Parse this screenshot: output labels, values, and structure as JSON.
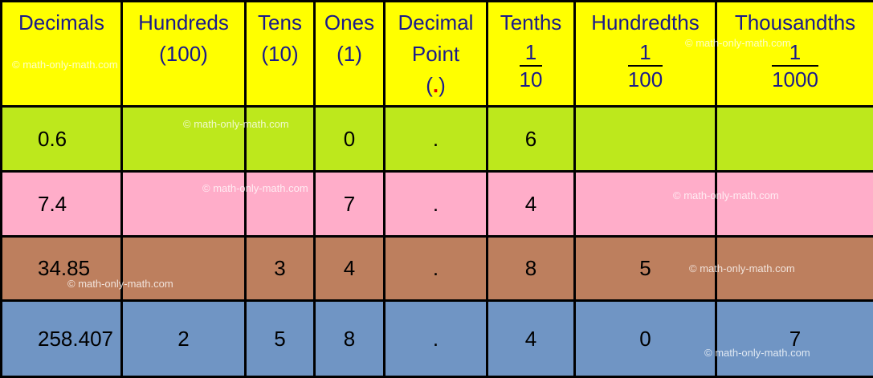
{
  "header": {
    "decimals": "Decimals",
    "hundreds": [
      "Hundreds",
      "(100)"
    ],
    "tens": [
      "Tens",
      "(10)"
    ],
    "ones": [
      "Ones",
      "(1)"
    ],
    "decimal_point": [
      "Decimal",
      "Point",
      "(",
      ".",
      ")"
    ],
    "tenths": {
      "label": "Tenths",
      "num": "1",
      "den": "10"
    },
    "hundredths": {
      "label": "Hundredths",
      "num": "1",
      "den": "100"
    },
    "thousandths": {
      "label": "Thousandths",
      "num": "1",
      "den": "1000"
    }
  },
  "rows": [
    {
      "decimal": "0.6",
      "hundreds": "",
      "tens": "",
      "ones": "0",
      "point": ".",
      "tenths": "6",
      "hundredths": "",
      "thousandths": ""
    },
    {
      "decimal": "7.4",
      "hundreds": "",
      "tens": "",
      "ones": "7",
      "point": ".",
      "tenths": "4",
      "hundredths": "",
      "thousandths": ""
    },
    {
      "decimal": "34.85",
      "hundreds": "",
      "tens": "3",
      "ones": "4",
      "point": ".",
      "tenths": "8",
      "hundredths": "5",
      "thousandths": ""
    },
    {
      "decimal": "258.407",
      "hundreds": "2",
      "tens": "5",
      "ones": "8",
      "point": ".",
      "tenths": "4",
      "hundredths": "0",
      "thousandths": "7"
    }
  ],
  "watermark": "© math-only-math.com",
  "colors": {
    "header_bg": "#ffff00",
    "header_text": "#1a1a8c",
    "row1_bg": "#bde81c",
    "row2_bg": "#ffadc9",
    "row3_bg": "#bd7f5e",
    "row4_bg": "#7095c4",
    "decimal_dot": "#e00000"
  }
}
